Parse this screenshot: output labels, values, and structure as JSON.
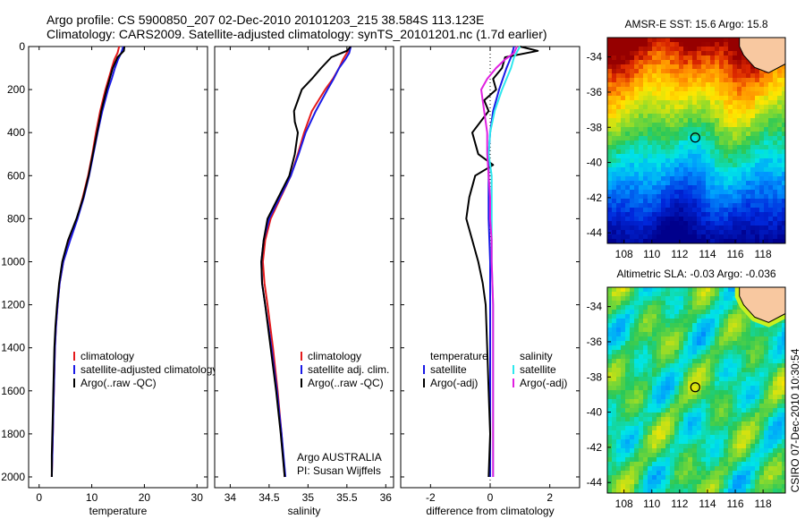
{
  "header": {
    "title_line1": "Argo profile: CS 5900850_207 02-Dec-2010 20101203_215 38.584S 113.123E",
    "title_line2": "Climatology: CARS2009. Satellite-adjusted climatology: synTS_20101201.nc (1.7d earlier)"
  },
  "footer": {
    "side_label": "CSIRO 07-Dec-2010 10:30:54",
    "argo_group": "Argo AUSTRALIA",
    "pi": "PI: Susan Wijffels"
  },
  "colors": {
    "climatology": "#e41a1c",
    "satellite": "#1a1ae6",
    "argo": "#000000",
    "sat_diff": "#2ee8ee",
    "argo_adj": "#e020e0",
    "land": "#f8c8a0"
  },
  "chart_data": [
    {
      "type": "line",
      "xlabel": "temperature",
      "ylabel": "",
      "xlim": [
        -2,
        32
      ],
      "ylim": [
        2050,
        0
      ],
      "xticks": [
        "0",
        "10",
        "20",
        "30"
      ],
      "yticks": [
        "0",
        "200",
        "400",
        "600",
        "800",
        "1000",
        "1200",
        "1400",
        "1600",
        "1800",
        "2000"
      ],
      "legend": [
        "climatology",
        "satellite-adjusted climatology",
        "Argo(..raw -QC)"
      ],
      "series": [
        {
          "name": "climatology",
          "color": "#e41a1c",
          "depth": [
            0,
            30,
            60,
            100,
            150,
            200,
            300,
            400,
            500,
            600,
            700,
            800,
            900,
            1000,
            1100,
            1200,
            1300,
            1400,
            1500,
            1600,
            1700,
            1800,
            1900,
            2000
          ],
          "values": [
            15.2,
            14.9,
            14.3,
            13.8,
            13.2,
            12.6,
            11.6,
            10.8,
            10.1,
            9.3,
            8.3,
            7.2,
            5.8,
            4.6,
            3.9,
            3.5,
            3.2,
            3.0,
            2.9,
            2.8,
            2.7,
            2.6,
            2.5,
            2.4
          ]
        },
        {
          "name": "satellite-adjusted climatology",
          "color": "#1a1ae6",
          "depth": [
            0,
            30,
            60,
            100,
            150,
            200,
            300,
            400,
            500,
            600,
            700,
            800,
            900,
            1000,
            1100,
            1200,
            1300,
            1400,
            1500,
            1600,
            1700,
            1800,
            1900,
            2000
          ],
          "values": [
            16.0,
            15.6,
            15.0,
            14.4,
            13.8,
            13.1,
            12.0,
            11.1,
            10.3,
            9.5,
            8.5,
            7.3,
            5.9,
            4.6,
            3.9,
            3.5,
            3.2,
            3.0,
            2.9,
            2.8,
            2.7,
            2.6,
            2.5,
            2.4
          ]
        },
        {
          "name": "Argo(..raw -QC)",
          "color": "#000000",
          "depth": [
            0,
            20,
            50,
            100,
            150,
            200,
            300,
            400,
            500,
            600,
            700,
            800,
            900,
            1000,
            1100,
            1200,
            1300,
            1400,
            1500,
            1600,
            1700,
            1800,
            1900,
            2000
          ],
          "values": [
            16.2,
            16.1,
            14.9,
            14.0,
            13.4,
            12.8,
            11.8,
            11.0,
            10.2,
            9.4,
            8.4,
            7.1,
            5.5,
            4.4,
            3.8,
            3.4,
            3.1,
            2.9,
            2.8,
            2.7,
            2.6,
            2.5,
            2.4,
            2.4
          ]
        }
      ]
    },
    {
      "type": "line",
      "xlabel": "salinity",
      "ylabel": "",
      "xlim": [
        33.8,
        36.1
      ],
      "ylim": [
        2050,
        0
      ],
      "xticks": [
        "34",
        "34.5",
        "35",
        "35.5",
        "36"
      ],
      "legend": [
        "climatology",
        "satellite adj. clim.",
        "Argo(..raw -QC)"
      ],
      "series": [
        {
          "name": "climatology",
          "color": "#e41a1c",
          "depth": [
            0,
            30,
            60,
            100,
            150,
            200,
            300,
            400,
            500,
            600,
            700,
            800,
            900,
            1000,
            1100,
            1200,
            1400,
            1600,
            1800,
            2000
          ],
          "values": [
            35.55,
            35.5,
            35.45,
            35.4,
            35.32,
            35.22,
            35.05,
            34.95,
            34.87,
            34.78,
            34.65,
            34.52,
            34.45,
            34.42,
            34.44,
            34.48,
            34.55,
            34.61,
            34.66,
            34.7
          ]
        },
        {
          "name": "satellite adj. clim.",
          "color": "#1a1ae6",
          "depth": [
            0,
            30,
            60,
            100,
            150,
            200,
            300,
            400,
            500,
            600,
            700,
            800,
            900,
            1000,
            1100,
            1200,
            1400,
            1600,
            1800,
            2000
          ],
          "values": [
            35.55,
            35.53,
            35.48,
            35.4,
            35.33,
            35.25,
            35.1,
            34.97,
            34.88,
            34.78,
            34.64,
            34.5,
            34.43,
            34.4,
            34.41,
            34.45,
            34.53,
            34.6,
            34.66,
            34.71
          ]
        },
        {
          "name": "Argo(..raw -QC)",
          "color": "#000000",
          "depth": [
            0,
            20,
            50,
            100,
            150,
            200,
            300,
            350,
            400,
            450,
            500,
            600,
            700,
            800,
            900,
            1000,
            1100,
            1200,
            1400,
            1600,
            1800,
            2000
          ],
          "values": [
            35.55,
            35.5,
            35.3,
            35.17,
            35.05,
            34.92,
            34.82,
            34.83,
            34.87,
            34.85,
            34.83,
            34.76,
            34.62,
            34.48,
            34.43,
            34.4,
            34.41,
            34.45,
            34.52,
            34.59,
            34.65,
            34.7
          ]
        }
      ]
    },
    {
      "type": "line",
      "xlabel": "difference from climatology",
      "ylabel": "",
      "xlim": [
        -3,
        3
      ],
      "ylim": [
        2050,
        0
      ],
      "xticks": [
        "-2",
        "0",
        "2"
      ],
      "legend": [
        "temperature",
        "satellite",
        "Argo(-adj)",
        "salinity",
        "satellite",
        "Argo(-adj)"
      ],
      "series": [
        {
          "name": "satellite",
          "color": "#1a1ae6",
          "depth": [
            0,
            50,
            100,
            200,
            300,
            400,
            500,
            600,
            800,
            1000,
            1200,
            1500,
            1800,
            2000
          ],
          "values": [
            0.8,
            0.7,
            0.55,
            0.3,
            0.1,
            0.0,
            -0.05,
            -0.05,
            -0.05,
            0.0,
            0.0,
            0.0,
            0.0,
            0.0
          ]
        },
        {
          "name": "Argo(-adj)",
          "color": "#000000",
          "depth": [
            0,
            20,
            50,
            100,
            150,
            200,
            250,
            300,
            400,
            500,
            550,
            600,
            700,
            800,
            900,
            1000,
            1100,
            1200,
            1400,
            1600,
            1800,
            2000
          ],
          "values": [
            1.0,
            1.6,
            0.5,
            0.4,
            0.1,
            0.2,
            -0.2,
            -0.05,
            -0.6,
            -0.4,
            0.1,
            -0.5,
            -0.7,
            -0.8,
            -0.6,
            -0.4,
            -0.25,
            -0.15,
            -0.1,
            -0.05,
            0.0,
            -0.05
          ]
        },
        {
          "name": "satellite",
          "color": "#2ee8ee",
          "depth": [
            0,
            50,
            100,
            200,
            300,
            400,
            500,
            600,
            800,
            1000,
            1200,
            1500,
            1800,
            2000
          ],
          "values": [
            1.0,
            0.8,
            0.7,
            0.4,
            0.15,
            0.0,
            -0.05,
            0.05,
            0.05,
            0.05,
            0.1,
            0.1,
            0.1,
            0.1
          ]
        },
        {
          "name": "Argo(-adj)",
          "color": "#e020e0",
          "depth": [
            0,
            30,
            60,
            100,
            150,
            200,
            300,
            400,
            500,
            600,
            700,
            800,
            900,
            1000,
            1200,
            1400,
            1600,
            1800,
            2000
          ],
          "values": [
            0.9,
            0.8,
            0.5,
            0.2,
            -0.1,
            -0.3,
            -0.2,
            -0.1,
            -0.1,
            -0.05,
            0.0,
            0.0,
            0.05,
            0.05,
            0.1,
            0.1,
            0.1,
            0.1,
            0.1
          ]
        }
      ]
    },
    {
      "type": "heatmap",
      "title": "AMSR-E SST: 15.6 Argo: 15.8",
      "xticks": [
        "108",
        "110",
        "112",
        "114",
        "116",
        "118"
      ],
      "yticks": [
        "-34",
        "-36",
        "-38",
        "-40",
        "-42",
        "-44"
      ],
      "xlim": [
        106.8,
        119.6
      ],
      "ylim": [
        -44.6,
        -32.9
      ],
      "marker": {
        "lon": 113.123,
        "lat": -38.584
      }
    },
    {
      "type": "heatmap",
      "title": "Altimetric SLA: -0.03 Argo: -0.036",
      "xticks": [
        "108",
        "110",
        "112",
        "114",
        "116",
        "118"
      ],
      "yticks": [
        "-34",
        "-36",
        "-38",
        "-40",
        "-42",
        "-44"
      ],
      "xlim": [
        106.8,
        119.6
      ],
      "ylim": [
        -44.6,
        -32.9
      ],
      "marker": {
        "lon": 113.123,
        "lat": -38.584
      }
    }
  ]
}
